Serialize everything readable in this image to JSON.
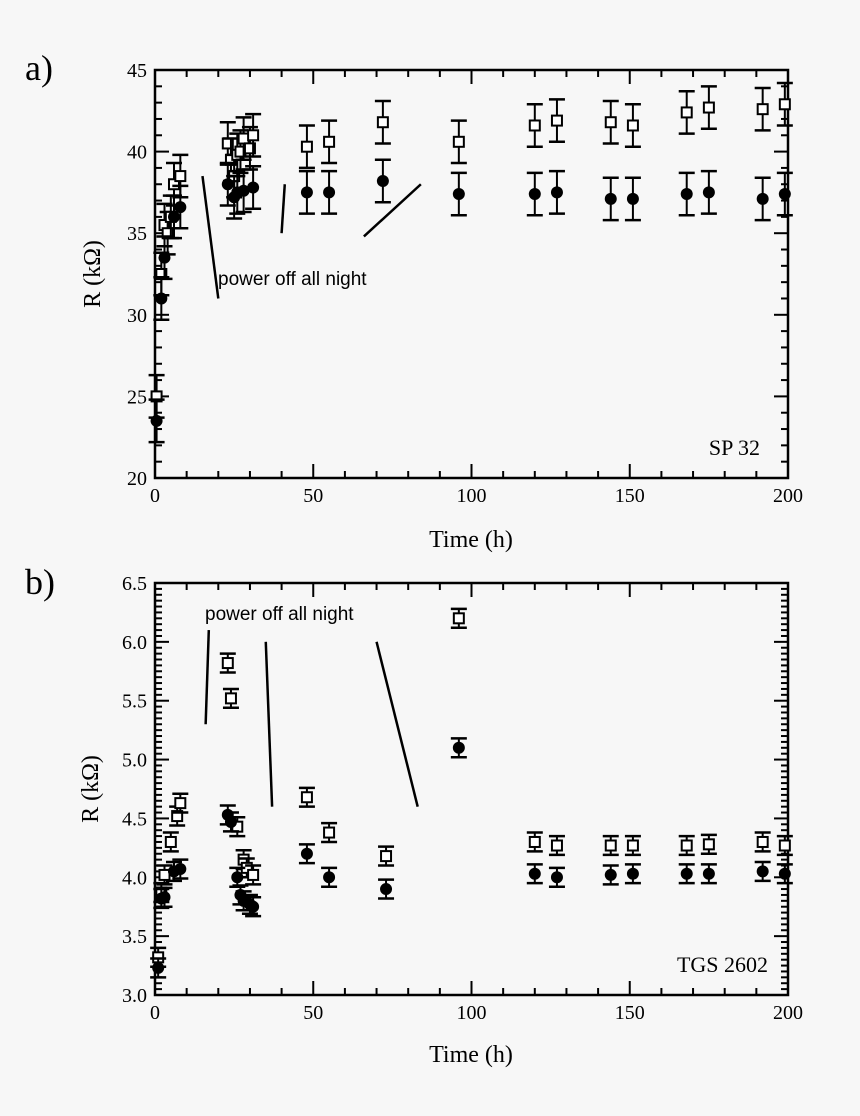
{
  "chart_data": [
    {
      "type": "scatter",
      "panel_label": "a)",
      "sensor_label": "SP 32",
      "annotation": "power off all night",
      "xlabel": "Time (h)",
      "ylabel": "R (kΩ)",
      "xlim": [
        0,
        200
      ],
      "ylim": [
        20,
        45
      ],
      "xticks": [
        "0",
        "50",
        "100",
        "150",
        "200"
      ],
      "yticks": [
        "20",
        "25",
        "30",
        "35",
        "40",
        "45"
      ],
      "error": 1.3,
      "series": [
        {
          "name": "open squares",
          "marker": "square-open",
          "x": [
            0.5,
            2,
            3,
            4,
            5,
            6,
            8,
            23,
            24,
            25,
            26,
            27,
            28,
            30,
            31,
            48,
            55,
            72,
            96,
            120,
            127,
            144,
            151,
            168,
            175,
            192,
            199
          ],
          "y": [
            25.0,
            32.5,
            35.5,
            35.0,
            36.0,
            38.0,
            38.5,
            40.5,
            39.5,
            38.5,
            39.8,
            40.0,
            40.8,
            40.2,
            41.0,
            40.3,
            40.6,
            41.8,
            40.6,
            41.6,
            41.9,
            41.8,
            41.6,
            42.4,
            42.7,
            42.6,
            42.9
          ]
        },
        {
          "name": "filled circles",
          "marker": "circle-filled",
          "x": [
            0.5,
            2,
            3,
            6,
            8,
            23,
            25,
            26,
            28,
            31,
            48,
            55,
            72,
            96,
            120,
            127,
            144,
            151,
            168,
            175,
            192,
            199
          ],
          "y": [
            23.5,
            31.0,
            33.5,
            36.0,
            36.6,
            38.0,
            37.2,
            37.5,
            37.6,
            37.8,
            37.5,
            37.5,
            38.2,
            37.4,
            37.4,
            37.5,
            37.1,
            37.1,
            37.4,
            37.5,
            37.1,
            37.4
          ]
        }
      ]
    },
    {
      "type": "scatter",
      "panel_label": "b)",
      "sensor_label": "TGS 2602",
      "annotation": "power off all night",
      "xlabel": "Time (h)",
      "ylabel": "R (kΩ)",
      "xlim": [
        0,
        200
      ],
      "ylim": [
        3.0,
        6.5
      ],
      "xticks": [
        "0",
        "50",
        "100",
        "150",
        "200"
      ],
      "yticks": [
        "3.0",
        "3.5",
        "4.0",
        "4.5",
        "5.0",
        "5.5",
        "6.0",
        "6.5"
      ],
      "error": 0.08,
      "series": [
        {
          "name": "open squares",
          "marker": "square-open",
          "x": [
            1,
            2,
            3,
            5,
            7,
            8,
            23,
            24,
            26,
            28,
            29,
            31,
            48,
            55,
            73,
            96,
            120,
            127,
            144,
            151,
            168,
            175,
            192,
            199
          ],
          "y": [
            3.32,
            3.87,
            4.02,
            4.3,
            4.52,
            4.63,
            5.82,
            5.52,
            4.43,
            4.15,
            4.08,
            4.02,
            4.68,
            4.38,
            4.18,
            6.2,
            4.3,
            4.27,
            4.27,
            4.27,
            4.27,
            4.28,
            4.3,
            4.27
          ]
        },
        {
          "name": "filled circles",
          "marker": "circle-filled",
          "x": [
            1,
            2,
            3,
            6,
            8,
            23,
            24,
            26,
            27,
            28,
            30,
            31,
            48,
            55,
            73,
            96,
            120,
            127,
            144,
            151,
            168,
            175,
            192,
            199
          ],
          "y": [
            3.23,
            3.82,
            3.83,
            4.05,
            4.07,
            4.53,
            4.47,
            4.0,
            3.85,
            3.8,
            3.77,
            3.75,
            4.2,
            4.0,
            3.9,
            5.1,
            4.03,
            4.0,
            4.02,
            4.03,
            4.03,
            4.03,
            4.05,
            4.03
          ]
        }
      ]
    }
  ]
}
